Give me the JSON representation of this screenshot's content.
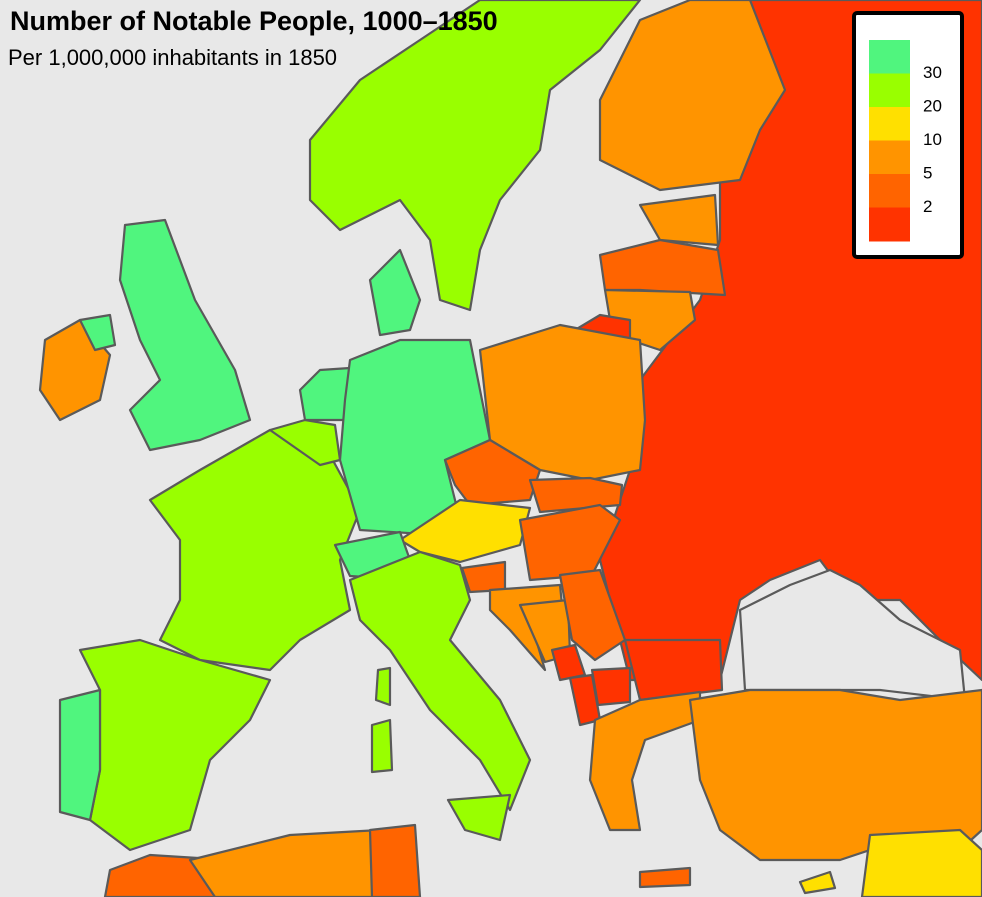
{
  "header": {
    "title": "Number of Notable People, 1000–1850",
    "subtitle": "Per 1,000,000 inhabitants in 1850"
  },
  "legend": {
    "colors": [
      "#50f57e",
      "#99ff00",
      "#ffe000",
      "#ff9400",
      "#ff6400",
      "#ff3300"
    ],
    "ticks": [
      30,
      20,
      10,
      5,
      2
    ]
  }
}
